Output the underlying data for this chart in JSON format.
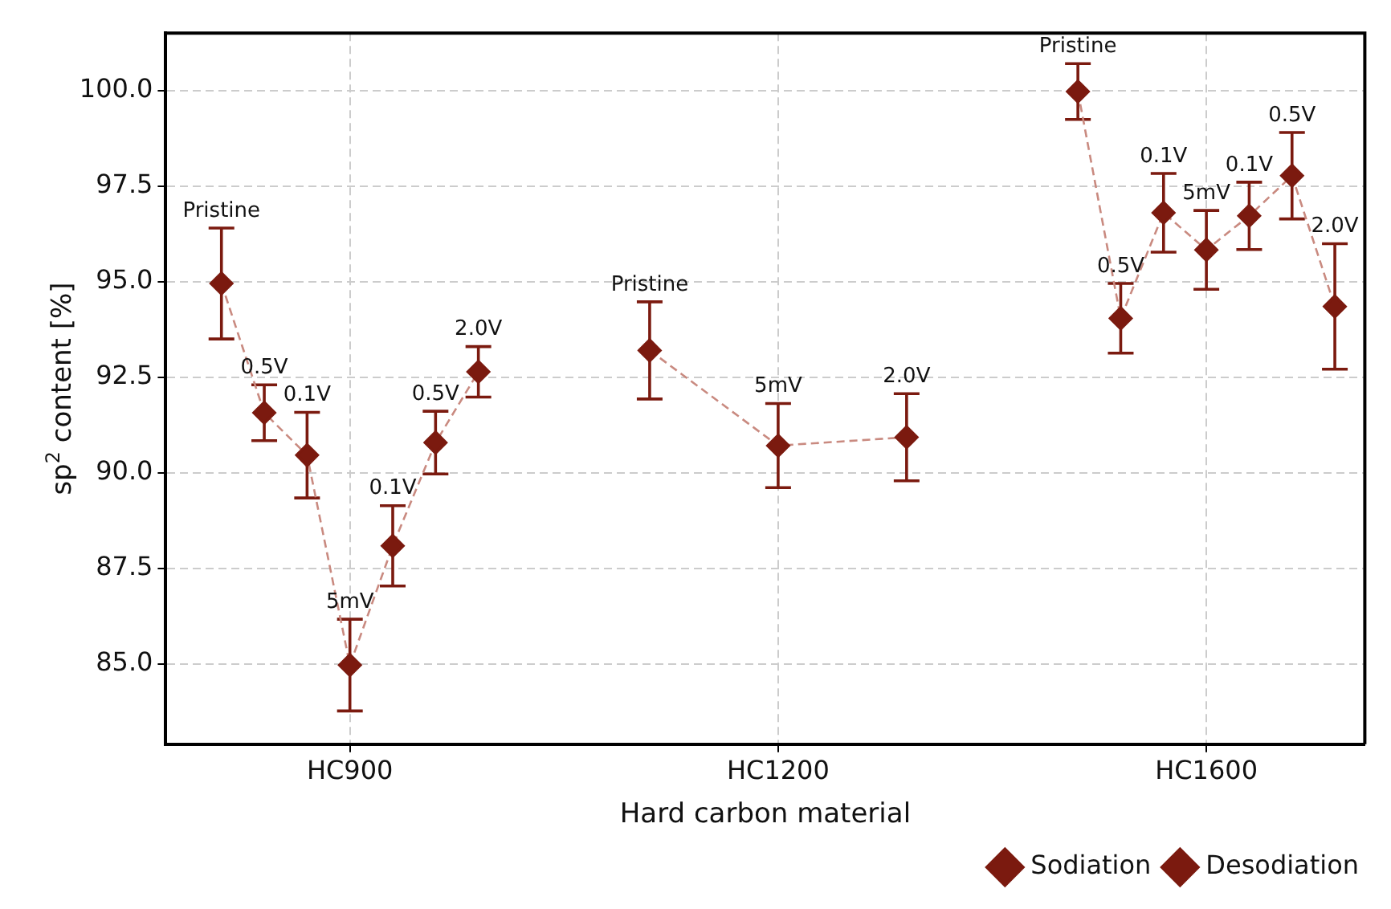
{
  "chart_data": {
    "type": "scatter",
    "xlabel": "Hard carbon material",
    "ylabel": "sp$^{2}$ content [%]",
    "categories": [
      null,
      null,
      null,
      "HC900",
      null,
      null,
      null,
      null,
      null,
      null,
      null,
      null,
      null,
      "HC1200",
      null,
      null,
      null,
      null,
      null,
      null,
      null,
      null,
      null,
      "HC1600",
      null,
      null,
      null
    ],
    "ylim": [
      82.9,
      101.5
    ],
    "yticks": [
      {
        "value": 85,
        "label": "85.0"
      },
      {
        "value": 87.5,
        "label": "87.5"
      },
      {
        "value": 90,
        "label": "90.0"
      },
      {
        "value": 92.5,
        "label": "92.5"
      },
      {
        "value": 95,
        "label": "95.0"
      },
      {
        "value": 97.5,
        "label": "97.5"
      },
      {
        "value": 100,
        "label": "100.0"
      }
    ],
    "grid": true,
    "legend": "bottom right",
    "series": [
      {
        "name": "Sodiation",
        "marker": "diamond",
        "color": "#7b1a0f",
        "values": [
          94.95,
          91.57,
          90.46,
          84.97,
          null,
          null,
          null,
          null,
          null,
          null,
          93.2,
          null,
          null,
          90.71,
          null,
          null,
          null,
          null,
          null,
          null,
          99.97,
          94.04,
          96.8,
          95.83,
          null,
          null,
          null
        ],
        "errors": [
          1.45,
          0.73,
          1.12,
          1.2,
          null,
          null,
          null,
          null,
          null,
          null,
          1.27,
          null,
          null,
          1.1,
          null,
          null,
          null,
          null,
          null,
          null,
          0.73,
          0.91,
          1.03,
          1.03,
          null,
          null,
          null
        ]
      },
      {
        "name": "Desodiation",
        "marker": "diamond",
        "color": "#7b1a0f",
        "values": [
          null,
          null,
          null,
          null,
          88.09,
          90.79,
          92.64,
          null,
          null,
          null,
          null,
          null,
          null,
          null,
          null,
          null,
          90.93,
          null,
          null,
          null,
          null,
          null,
          null,
          null,
          96.72,
          97.77,
          94.35
        ],
        "errors": [
          null,
          null,
          null,
          null,
          1.05,
          0.82,
          0.66,
          null,
          null,
          null,
          null,
          null,
          null,
          null,
          null,
          null,
          1.14,
          null,
          null,
          null,
          null,
          null,
          null,
          null,
          0.88,
          1.13,
          1.64
        ]
      },
      {
        "type": "line",
        "marker": "none",
        "line_style": "dashed",
        "color": "#c98a80",
        "values": [
          94.95,
          91.57,
          90.46,
          84.97,
          88.09,
          90.79,
          92.64,
          null,
          null,
          null,
          null,
          null,
          null,
          null,
          null,
          null,
          null,
          null,
          null,
          null,
          null,
          null,
          null,
          null,
          null,
          null,
          null
        ]
      },
      {
        "type": "line",
        "marker": "none",
        "line_style": "dashed",
        "color": "#c98a80",
        "values": [
          null,
          null,
          null,
          null,
          null,
          null,
          null,
          null,
          null,
          null,
          93.2,
          null,
          null,
          90.71,
          null,
          null,
          90.93,
          null,
          null,
          null,
          null,
          null,
          null,
          null,
          null,
          null,
          null
        ]
      },
      {
        "type": "line",
        "marker": "none",
        "line_style": "dashed",
        "color": "#c98a80",
        "values": [
          null,
          null,
          null,
          null,
          null,
          null,
          null,
          null,
          null,
          null,
          null,
          null,
          null,
          null,
          null,
          null,
          null,
          null,
          null,
          null,
          99.97,
          94.04,
          96.8,
          95.83,
          96.72,
          97.77,
          94.35
        ]
      }
    ],
    "annotations": [
      {
        "text": "Pristine",
        "y": 96.4
      },
      {
        "text": "0.5V",
        "y": 92.3
      },
      {
        "text": "0.1V",
        "y": 91.58
      },
      {
        "text": "5mV",
        "y": 86.17
      },
      {
        "text": "0.1V",
        "y": 89.14
      },
      {
        "text": "0.5V",
        "y": 91.61
      },
      {
        "text": "2.0V",
        "y": 93.3
      },
      {
        "text": "Pristine",
        "y": 94.47
      },
      {
        "text": "5mV",
        "y": 91.81
      },
      {
        "text": "2.0V",
        "y": 92.07
      },
      {
        "text": "Pristine",
        "y": 100.7
      },
      {
        "text": "0.5V",
        "y": 94.95
      },
      {
        "text": "0.1V",
        "y": 97.83
      },
      {
        "text": "5mV",
        "y": 96.86
      },
      {
        "text": "0.1V",
        "y": 97.6
      },
      {
        "text": "0.5V",
        "y": 98.9
      },
      {
        "text": "2.0V",
        "y": 95.99
      }
    ]
  }
}
